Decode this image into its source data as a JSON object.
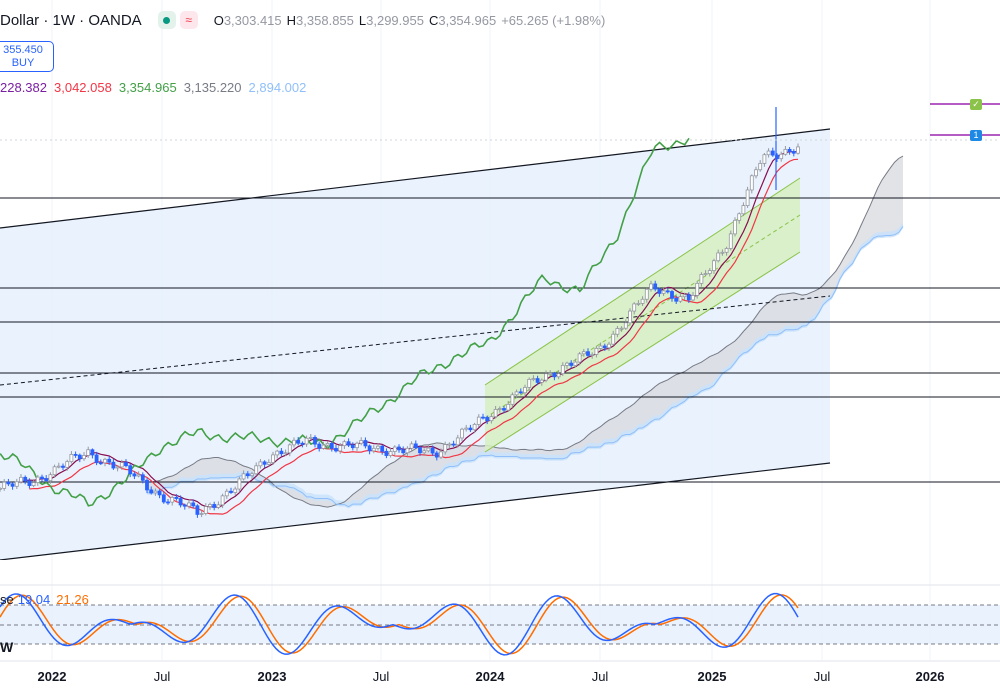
{
  "header": {
    "title": "Dollar · 1W · OANDA",
    "status_icon": "market-open-dot-icon",
    "compare_icon": "approx-equal-icon",
    "compare_symbol": "≈",
    "ohlc": {
      "o_label": "O",
      "o_value": "3,303.415",
      "h_label": "H",
      "h_value": "3,358.855",
      "l_label": "L",
      "l_value": "3,299.955",
      "c_label": "C",
      "c_value": "3,354.965",
      "change": "+65.265 (+1.98%)"
    }
  },
  "buy_button": {
    "price": "355.450",
    "label": "BUY"
  },
  "indicator_values": [
    {
      "text": "228.382",
      "color": "#7b1fa2"
    },
    {
      "text": "3,042.058",
      "color": "#f23645"
    },
    {
      "text": "3,354.965",
      "color": "#43a047"
    },
    {
      "text": "3,135.220",
      "color": "#787b86"
    },
    {
      "text": "2,894.002",
      "color": "#90bff9"
    }
  ],
  "stochastic": {
    "label": "se",
    "k_value": "19.04",
    "d_value": "21.26",
    "k_color": "#2962ff",
    "d_color": "#ff6d00"
  },
  "interval_label": "W",
  "time_axis": [
    {
      "label": "2022",
      "year": true
    },
    {
      "label": "Jul",
      "year": false
    },
    {
      "label": "2023",
      "year": true
    },
    {
      "label": "Jul",
      "year": false
    },
    {
      "label": "2024",
      "year": true
    },
    {
      "label": "Jul",
      "year": false
    },
    {
      "label": "2025",
      "year": true
    },
    {
      "label": "Jul",
      "year": false
    },
    {
      "label": "2026",
      "year": true
    }
  ],
  "alert_flags": [
    {
      "icon": "check-flag-icon",
      "symbol": "✓",
      "color": "#8bc34a"
    },
    {
      "icon": "number-flag-icon",
      "symbol": "1",
      "color": "#1e88e5"
    }
  ],
  "colors": {
    "up": "#d1d4dc",
    "down": "#2962ff",
    "tenkan": "#f23645",
    "kijun": "#880e4f",
    "chikou": "#43a047",
    "cloud_up": "#bbdefb",
    "cloud_down": "#d1d4dc",
    "channel_fill": "#e3f0fc",
    "green_channel": "#c5e8a5",
    "hlines": "#131722"
  },
  "chart_data": [
    {
      "type": "candlestick",
      "interval": "1W",
      "x_range": [
        "2021-10",
        "2026-04"
      ],
      "horizontal_levels_note": "six horizontal support/resistance lines",
      "trend_lines": [
        "ascending wide channel",
        "ascending regression channel (green)",
        "dashed trend line"
      ],
      "ichimoku": {
        "tenkan_last": 3042.058,
        "chikou_last": 3354.965,
        "span_a_last": 3135.22,
        "span_b_last": 2894.002
      },
      "last_close": 3354.965,
      "approx_close_path": [
        {
          "x": "2021-10",
          "close": 1760
        },
        {
          "x": "2021-12",
          "close": 1800
        },
        {
          "x": "2022-03",
          "close": 1930
        },
        {
          "x": "2022-05",
          "close": 1850
        },
        {
          "x": "2022-07",
          "close": 1730
        },
        {
          "x": "2022-09",
          "close": 1650
        },
        {
          "x": "2022-11",
          "close": 1760
        },
        {
          "x": "2023-01",
          "close": 1920
        },
        {
          "x": "2023-03",
          "close": 1980
        },
        {
          "x": "2023-05",
          "close": 1960
        },
        {
          "x": "2023-07",
          "close": 1950
        },
        {
          "x": "2023-10",
          "close": 1930
        },
        {
          "x": "2023-12",
          "close": 2040
        },
        {
          "x": "2024-03",
          "close": 2230
        },
        {
          "x": "2024-05",
          "close": 2330
        },
        {
          "x": "2024-07",
          "close": 2400
        },
        {
          "x": "2024-10",
          "close": 2700
        },
        {
          "x": "2024-12",
          "close": 2640
        },
        {
          "x": "2025-02",
          "close": 2900
        },
        {
          "x": "2025-04",
          "close": 3300
        },
        {
          "x": "2025-06",
          "close": 3354.965
        }
      ]
    },
    {
      "type": "line",
      "name": "Stochastic",
      "series": [
        {
          "name": "%K",
          "last": 19.04
        },
        {
          "name": "%D",
          "last": 21.26
        }
      ],
      "levels": [
        80,
        50,
        20
      ]
    }
  ]
}
